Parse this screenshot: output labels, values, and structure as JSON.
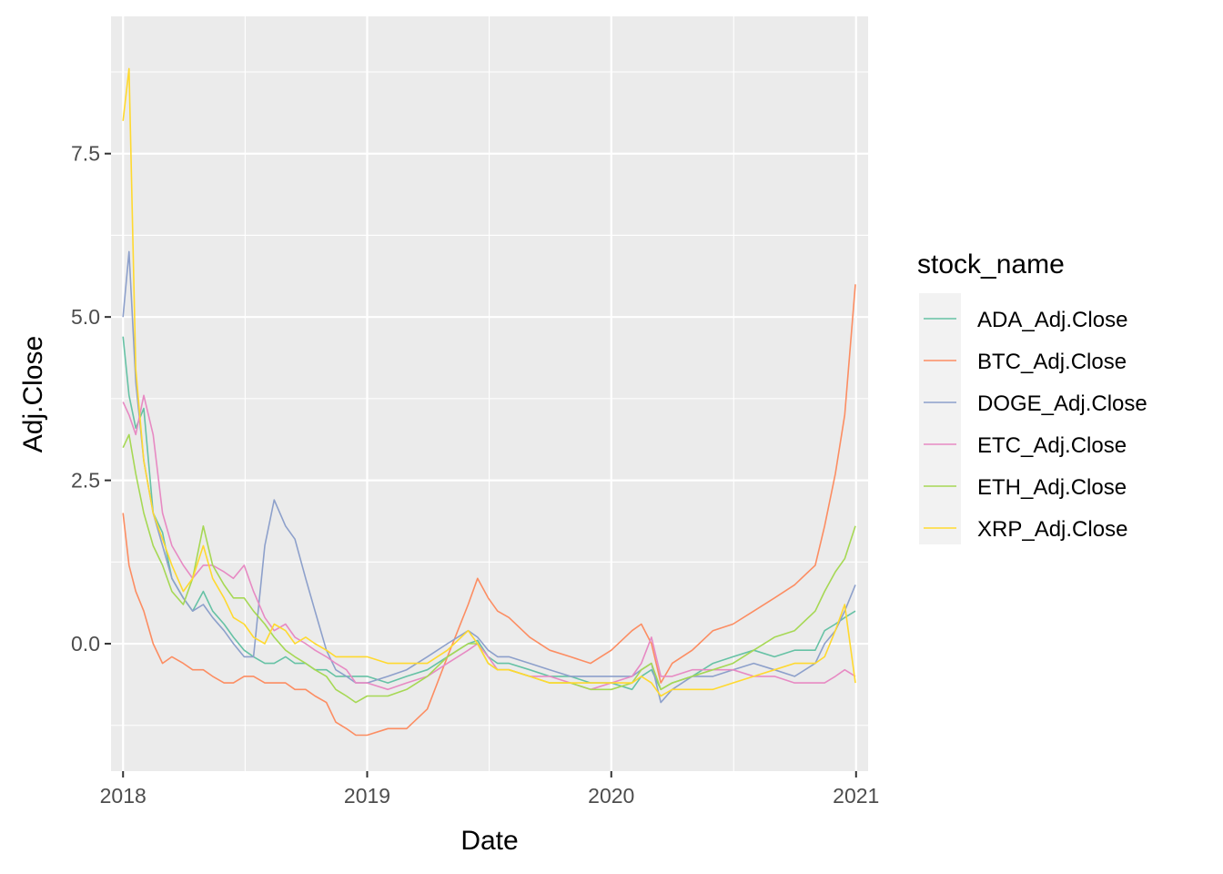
{
  "chart_data": {
    "type": "line",
    "title": "",
    "xlabel": "Date",
    "ylabel": "Adj.Close",
    "x_ticks": [
      "2018",
      "2019",
      "2020",
      "2021"
    ],
    "x_tick_values": [
      "2018-01-01",
      "2019-01-01",
      "2020-01-01",
      "2021-01-01"
    ],
    "y_ticks": [
      "0.0",
      "2.5",
      "5.0",
      "7.5"
    ],
    "y_tick_values": [
      0,
      2.5,
      5,
      7.5
    ],
    "xlim": [
      "2017-12-14",
      "2021-01-19"
    ],
    "ylim": [
      -1.95,
      9.6
    ],
    "grid": true,
    "legend": {
      "title": "stock_name",
      "position": "right"
    },
    "x": [
      "2018-01-01",
      "2018-01-10",
      "2018-01-20",
      "2018-02-01",
      "2018-02-15",
      "2018-03-01",
      "2018-03-15",
      "2018-04-01",
      "2018-04-15",
      "2018-05-01",
      "2018-05-15",
      "2018-06-01",
      "2018-06-15",
      "2018-07-01",
      "2018-07-15",
      "2018-08-01",
      "2018-08-15",
      "2018-09-01",
      "2018-09-15",
      "2018-10-01",
      "2018-10-15",
      "2018-11-01",
      "2018-11-15",
      "2018-12-01",
      "2018-12-15",
      "2019-01-01",
      "2019-02-01",
      "2019-03-01",
      "2019-04-01",
      "2019-05-01",
      "2019-06-01",
      "2019-06-15",
      "2019-07-01",
      "2019-07-15",
      "2019-08-01",
      "2019-09-01",
      "2019-10-01",
      "2019-11-01",
      "2019-12-01",
      "2020-01-01",
      "2020-02-01",
      "2020-02-15",
      "2020-03-01",
      "2020-03-15",
      "2020-04-01",
      "2020-05-01",
      "2020-06-01",
      "2020-07-01",
      "2020-08-01",
      "2020-09-01",
      "2020-10-01",
      "2020-11-01",
      "2020-11-15",
      "2020-12-01",
      "2020-12-15",
      "2020-12-31"
    ],
    "series": [
      {
        "name": "ADA_Adj.Close",
        "color": "#66c2a5",
        "values": [
          4.7,
          3.8,
          3.3,
          3.6,
          2.0,
          1.7,
          1.0,
          0.7,
          0.5,
          0.8,
          0.5,
          0.3,
          0.1,
          -0.1,
          -0.2,
          -0.3,
          -0.3,
          -0.2,
          -0.3,
          -0.3,
          -0.4,
          -0.4,
          -0.5,
          -0.5,
          -0.5,
          -0.5,
          -0.6,
          -0.5,
          -0.4,
          -0.2,
          0.0,
          0.05,
          -0.2,
          -0.3,
          -0.3,
          -0.4,
          -0.5,
          -0.5,
          -0.6,
          -0.6,
          -0.7,
          -0.5,
          -0.4,
          -0.7,
          -0.6,
          -0.5,
          -0.3,
          -0.2,
          -0.1,
          -0.2,
          -0.1,
          -0.1,
          0.2,
          0.3,
          0.4,
          0.5
        ]
      },
      {
        "name": "BTC_Adj.Close",
        "color": "#fc8d62",
        "values": [
          2.0,
          1.2,
          0.8,
          0.5,
          0.0,
          -0.3,
          -0.2,
          -0.3,
          -0.4,
          -0.4,
          -0.5,
          -0.6,
          -0.6,
          -0.5,
          -0.5,
          -0.6,
          -0.6,
          -0.6,
          -0.7,
          -0.7,
          -0.8,
          -0.9,
          -1.2,
          -1.3,
          -1.4,
          -1.4,
          -1.3,
          -1.3,
          -1.0,
          -0.2,
          0.6,
          1.0,
          0.7,
          0.5,
          0.4,
          0.1,
          -0.1,
          -0.2,
          -0.3,
          -0.1,
          0.2,
          0.3,
          0.0,
          -0.6,
          -0.3,
          -0.1,
          0.2,
          0.3,
          0.5,
          0.7,
          0.9,
          1.2,
          1.8,
          2.6,
          3.5,
          5.5
        ]
      },
      {
        "name": "DOGE_Adj.Close",
        "color": "#8da0cb",
        "values": [
          5.0,
          6.0,
          4.0,
          2.8,
          2.0,
          1.5,
          1.0,
          0.7,
          0.5,
          0.6,
          0.4,
          0.2,
          0.0,
          -0.2,
          -0.2,
          1.5,
          2.2,
          1.8,
          1.6,
          1.0,
          0.5,
          -0.1,
          -0.4,
          -0.5,
          -0.6,
          -0.6,
          -0.5,
          -0.4,
          -0.2,
          0.0,
          0.2,
          0.1,
          -0.1,
          -0.2,
          -0.2,
          -0.3,
          -0.4,
          -0.5,
          -0.5,
          -0.5,
          -0.5,
          -0.4,
          -0.3,
          -0.9,
          -0.7,
          -0.5,
          -0.5,
          -0.4,
          -0.3,
          -0.4,
          -0.5,
          -0.3,
          0.0,
          0.2,
          0.5,
          0.9
        ]
      },
      {
        "name": "ETC_Adj.Close",
        "color": "#e78ac3",
        "values": [
          3.7,
          3.5,
          3.2,
          3.8,
          3.2,
          2.0,
          1.5,
          1.2,
          1.0,
          1.2,
          1.2,
          1.1,
          1.0,
          1.2,
          0.8,
          0.4,
          0.2,
          0.3,
          0.1,
          0.0,
          -0.1,
          -0.2,
          -0.3,
          -0.4,
          -0.6,
          -0.6,
          -0.7,
          -0.6,
          -0.5,
          -0.3,
          -0.1,
          0.0,
          -0.2,
          -0.4,
          -0.4,
          -0.5,
          -0.5,
          -0.6,
          -0.7,
          -0.6,
          -0.5,
          -0.3,
          0.1,
          -0.5,
          -0.5,
          -0.4,
          -0.4,
          -0.4,
          -0.5,
          -0.5,
          -0.6,
          -0.6,
          -0.6,
          -0.5,
          -0.4,
          -0.5
        ]
      },
      {
        "name": "ETH_Adj.Close",
        "color": "#a6d854",
        "values": [
          3.0,
          3.2,
          2.6,
          2.0,
          1.5,
          1.2,
          0.8,
          0.6,
          1.0,
          1.8,
          1.2,
          0.9,
          0.7,
          0.7,
          0.5,
          0.3,
          0.1,
          -0.1,
          -0.2,
          -0.3,
          -0.4,
          -0.5,
          -0.7,
          -0.8,
          -0.9,
          -0.8,
          -0.8,
          -0.7,
          -0.5,
          -0.2,
          0.0,
          0.0,
          -0.3,
          -0.4,
          -0.4,
          -0.5,
          -0.6,
          -0.6,
          -0.7,
          -0.7,
          -0.6,
          -0.4,
          -0.3,
          -0.7,
          -0.6,
          -0.5,
          -0.4,
          -0.3,
          -0.1,
          0.1,
          0.2,
          0.5,
          0.8,
          1.1,
          1.3,
          1.8
        ]
      },
      {
        "name": "XRP_Adj.Close",
        "color": "#ffd92f",
        "values": [
          8.0,
          8.8,
          4.2,
          2.8,
          2.0,
          1.6,
          1.2,
          0.8,
          1.0,
          1.5,
          1.0,
          0.7,
          0.4,
          0.3,
          0.1,
          0.0,
          0.3,
          0.2,
          0.0,
          0.1,
          0.0,
          -0.1,
          -0.2,
          -0.2,
          -0.2,
          -0.2,
          -0.3,
          -0.3,
          -0.3,
          -0.1,
          0.2,
          0.0,
          -0.3,
          -0.4,
          -0.4,
          -0.5,
          -0.6,
          -0.6,
          -0.6,
          -0.6,
          -0.6,
          -0.5,
          -0.6,
          -0.8,
          -0.7,
          -0.7,
          -0.7,
          -0.6,
          -0.5,
          -0.4,
          -0.3,
          -0.3,
          -0.2,
          0.2,
          0.6,
          -0.6
        ]
      }
    ]
  }
}
